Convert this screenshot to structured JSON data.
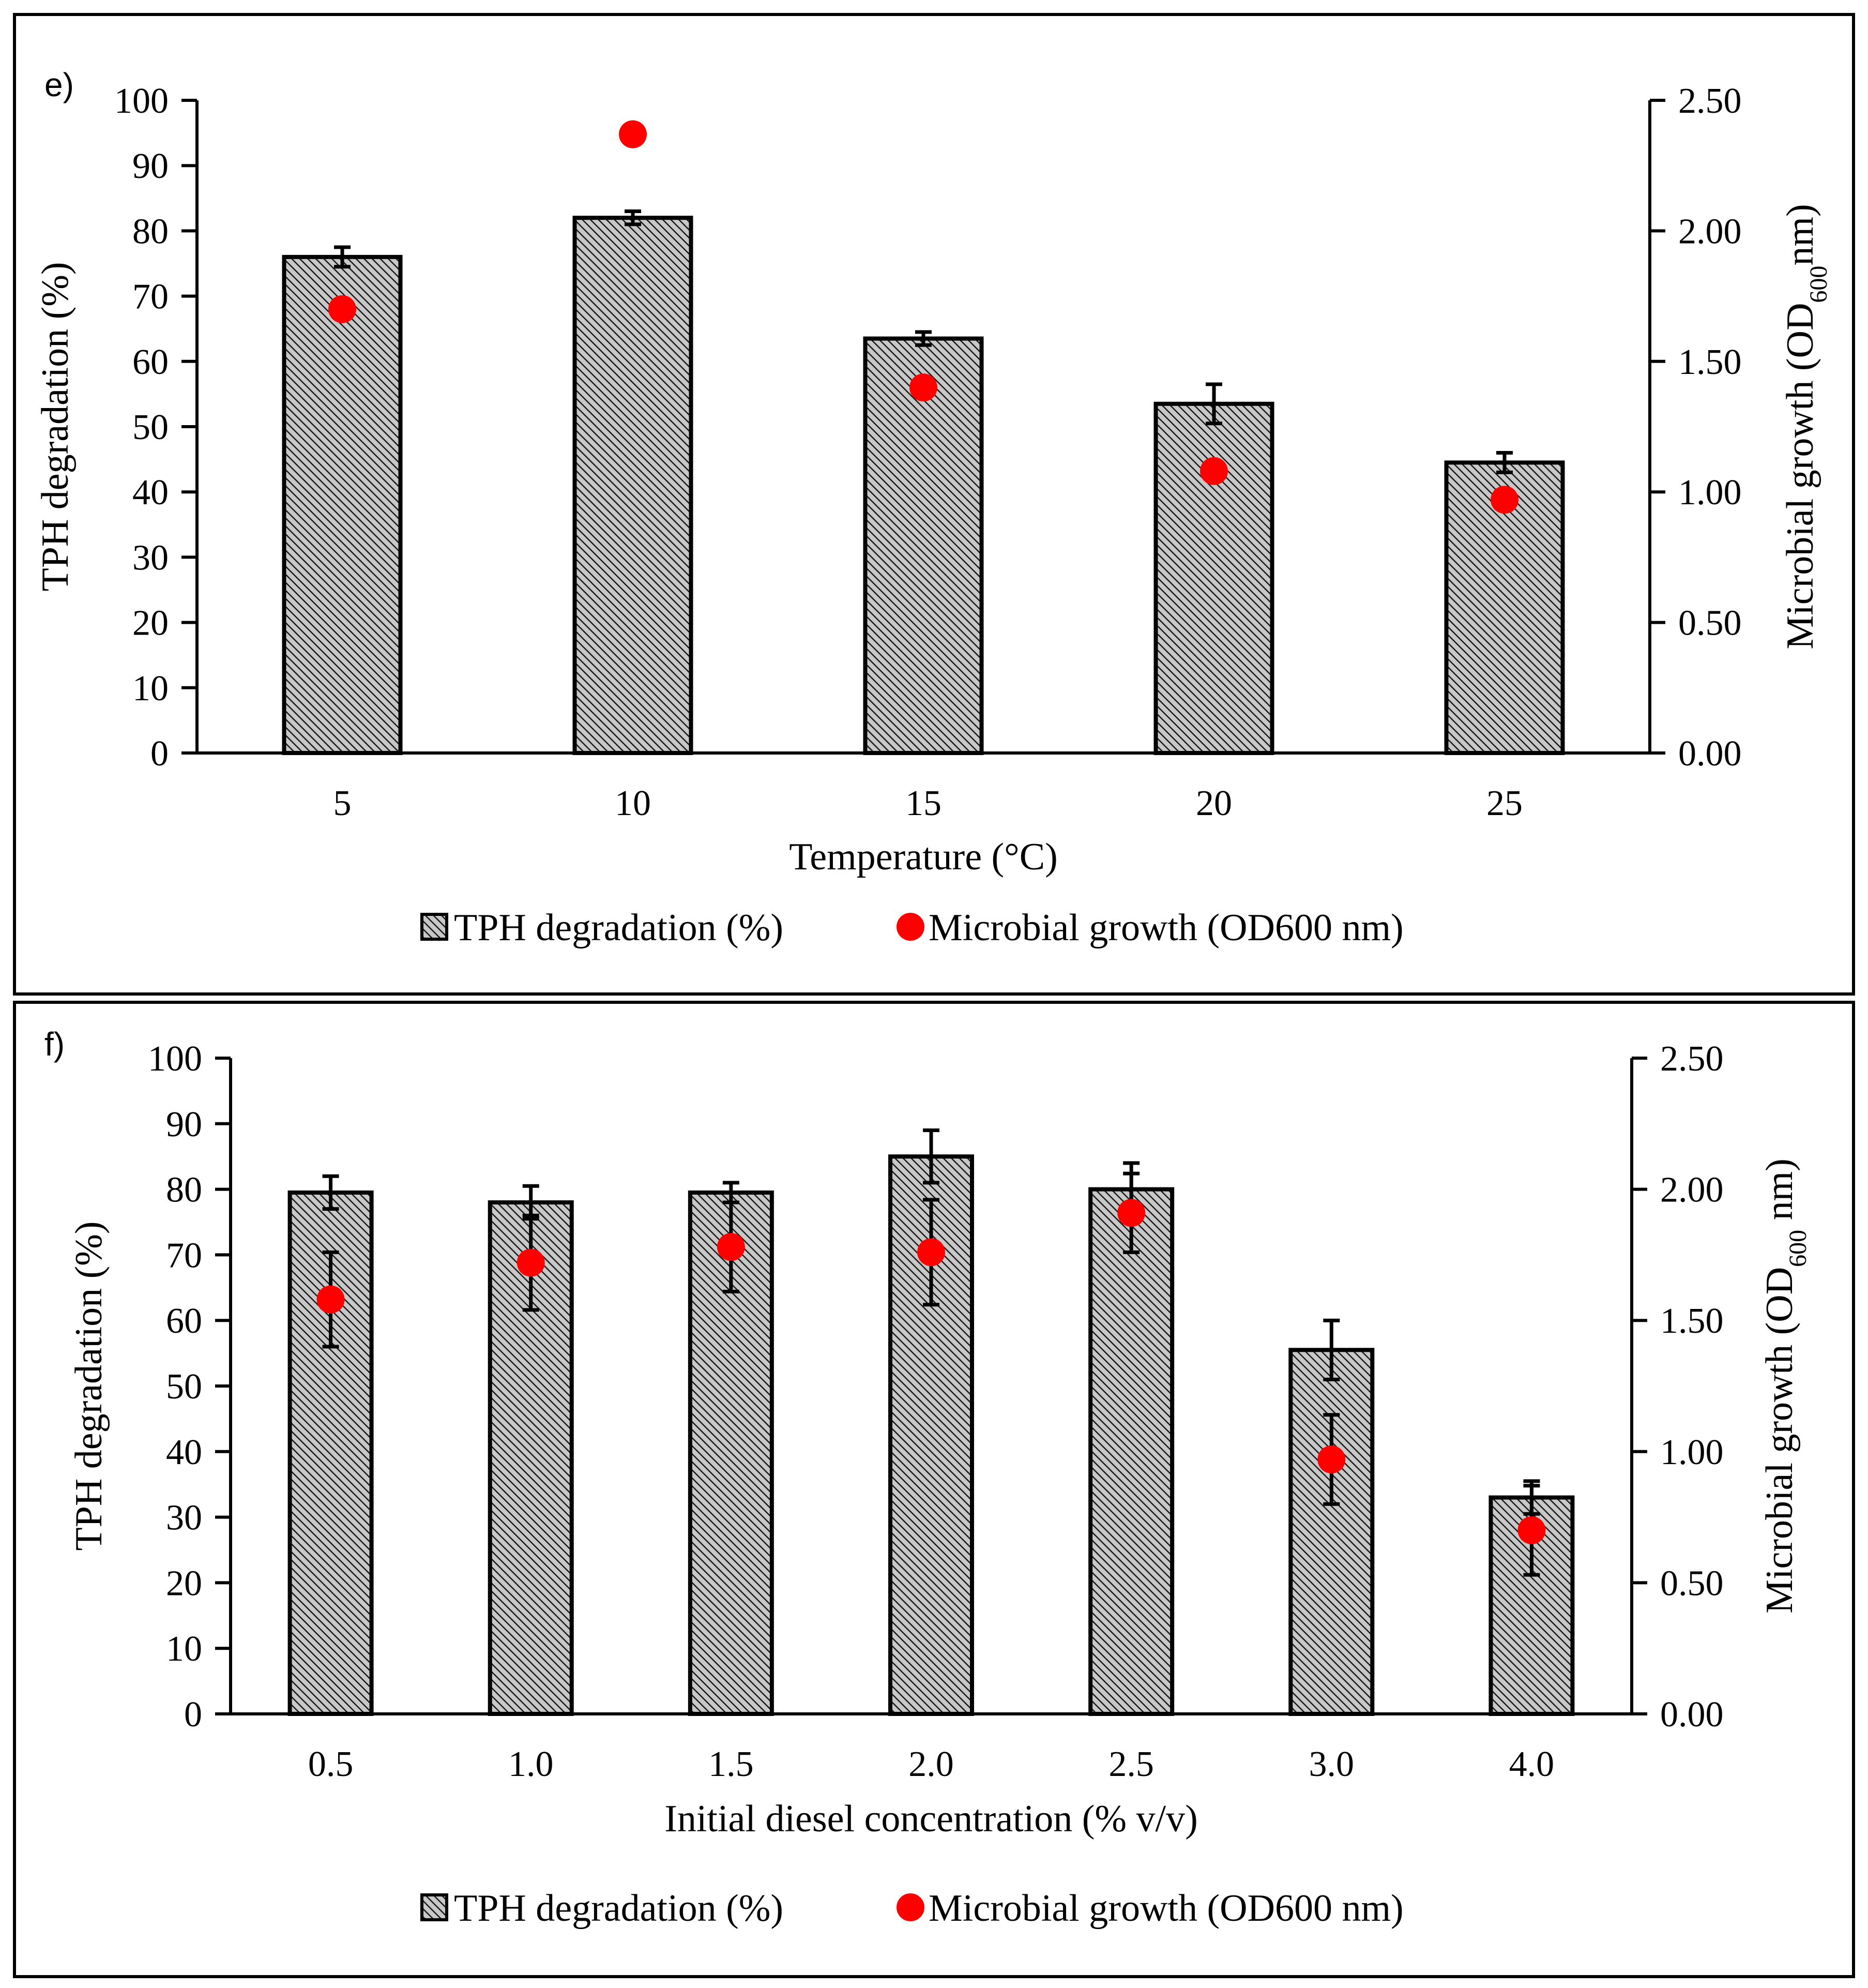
{
  "chart_data": [
    {
      "type": "bar",
      "panel_label": "e)",
      "title": "",
      "xlabel": "Temperature (°C)",
      "ylabel": "TPH degradation (%)",
      "y2label_main": "Microbial growth (OD",
      "y2label_sub": "600",
      "y2label_end": "nm)",
      "categories": [
        "5",
        "10",
        "15",
        "20",
        "25"
      ],
      "ylim": [
        0,
        100
      ],
      "yticks": [
        "0",
        "10",
        "20",
        "30",
        "40",
        "50",
        "60",
        "70",
        "80",
        "90",
        "100"
      ],
      "y2lim": [
        0,
        2.5
      ],
      "y2ticks": [
        "0.00",
        "0.50",
        "1.00",
        "1.50",
        "2.00",
        "2.50"
      ],
      "series": [
        {
          "name": "TPH degradation (%)",
          "kind": "bar",
          "values": [
            76,
            82,
            63.5,
            53.5,
            44.5
          ],
          "err": [
            1.5,
            1,
            1,
            3,
            1.5
          ],
          "axis": "left"
        },
        {
          "name": "Microbial growth (OD600 nm)",
          "kind": "scatter",
          "values": [
            1.7,
            2.37,
            1.4,
            1.08,
            0.97
          ],
          "err": [
            0,
            0,
            0,
            0,
            0
          ],
          "axis": "right",
          "color": "#ff0000"
        }
      ],
      "legend_position": "bottom"
    },
    {
      "type": "bar",
      "panel_label": "f)",
      "title": "",
      "xlabel": "Initial diesel concentration (% v/v)",
      "ylabel": "TPH degradation (%)",
      "y2label_main": "Microbial growth (OD",
      "y2label_sub": "600",
      "y2label_end": " nm)",
      "categories": [
        "0.5",
        "1.0",
        "1.5",
        "2.0",
        "2.5",
        "3.0",
        "4.0"
      ],
      "ylim": [
        0,
        100
      ],
      "yticks": [
        "0",
        "10",
        "20",
        "30",
        "40",
        "50",
        "60",
        "70",
        "80",
        "90",
        "100"
      ],
      "y2lim": [
        0,
        2.5
      ],
      "y2ticks": [
        "0.00",
        "0.50",
        "1.00",
        "1.50",
        "2.00",
        "2.50"
      ],
      "series": [
        {
          "name": "TPH degradation (%)",
          "kind": "bar",
          "values": [
            79.5,
            78,
            79.5,
            85,
            80,
            55.5,
            33
          ],
          "err": [
            2.5,
            2.5,
            1.5,
            4,
            4,
            4.5,
            2.5
          ],
          "axis": "left"
        },
        {
          "name": "Microbial growth (OD600 nm)",
          "kind": "scatter",
          "values": [
            1.58,
            1.72,
            1.78,
            1.76,
            1.91,
            0.97,
            0.7
          ],
          "err": [
            0.18,
            0.18,
            0.17,
            0.2,
            0.15,
            0.17,
            0.17
          ],
          "axis": "right",
          "color": "#ff0000"
        }
      ],
      "legend_position": "bottom"
    }
  ]
}
